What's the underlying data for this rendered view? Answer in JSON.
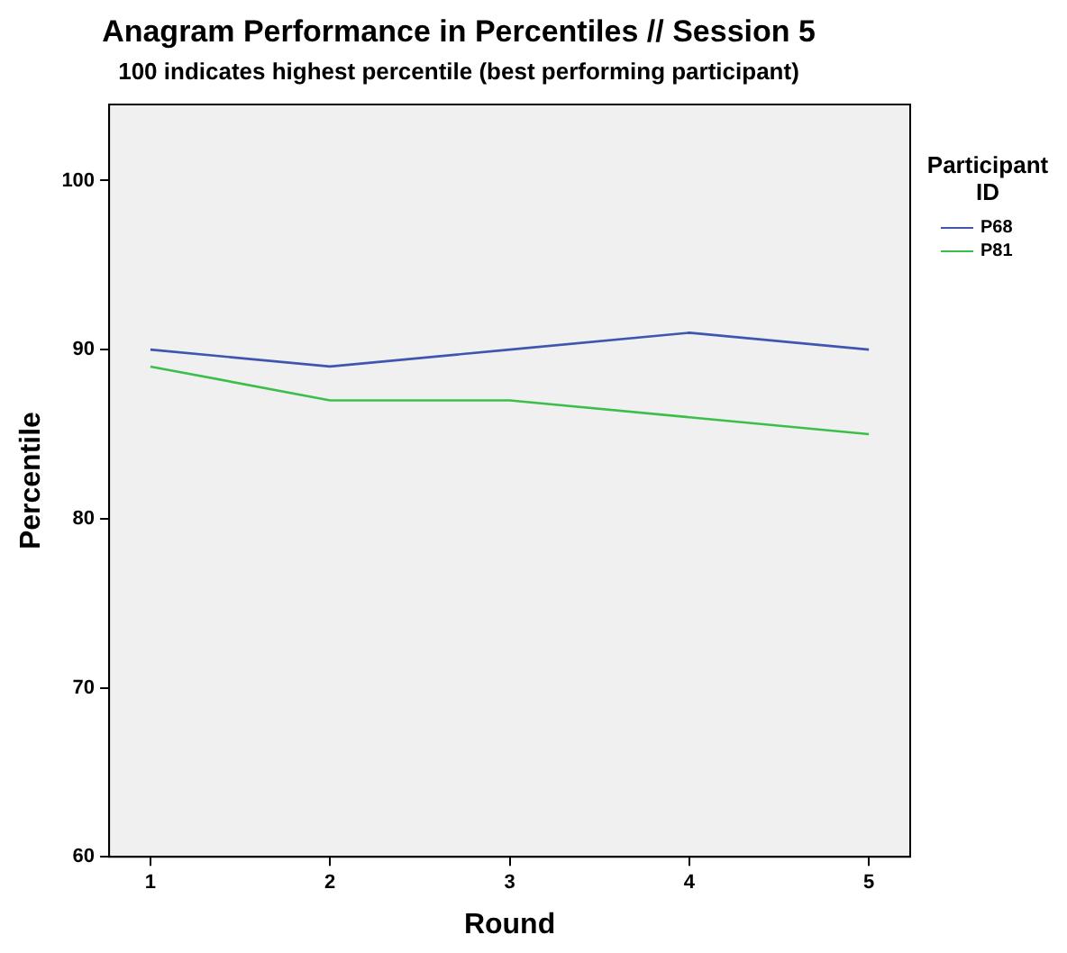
{
  "chart_data": {
    "type": "line",
    "title": "Anagram Performance in Percentiles // Session 5",
    "subtitle": "100 indicates highest percentile (best performing participant)",
    "xlabel": "Round",
    "ylabel": "Percentile",
    "legend_title": "Participant ID",
    "x": [
      1,
      2,
      3,
      4,
      5
    ],
    "series": [
      {
        "name": "P68",
        "color": "#3f56b0",
        "values": [
          90,
          89,
          90,
          91,
          90
        ]
      },
      {
        "name": "P81",
        "color": "#3cbf4a",
        "values": [
          89,
          87,
          87,
          86,
          85
        ]
      }
    ],
    "xlim": [
      0.77,
      5.23
    ],
    "xticks": [
      1,
      2,
      3,
      4,
      5
    ],
    "ylim": [
      60,
      104.5
    ],
    "yticks": [
      60,
      70,
      80,
      90,
      100
    ],
    "grid": false,
    "legend": "top right",
    "marker": "none",
    "line_style": "solid"
  }
}
